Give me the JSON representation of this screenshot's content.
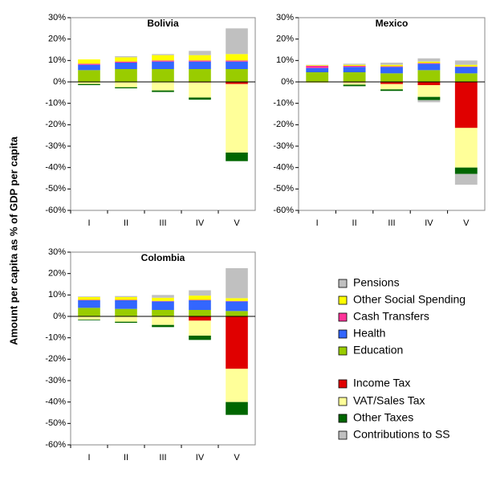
{
  "chart_data": [
    {
      "type": "bar",
      "title": "Bolivia",
      "ylabel": "Amount per capita as % of GDP per capita",
      "categories": [
        "I",
        "II",
        "III",
        "IV",
        "V"
      ],
      "ylim": [
        -60,
        30
      ],
      "yticks": [
        {
          "value": -60,
          "label": "-60%"
        },
        {
          "value": -50,
          "label": "-50%"
        },
        {
          "value": -40,
          "label": "-40%"
        },
        {
          "value": -30,
          "label": "-30%"
        },
        {
          "value": -20,
          "label": "-20%"
        },
        {
          "value": -10,
          "label": "-10%"
        },
        {
          "value": 0,
          "label": "0%"
        },
        {
          "value": 10,
          "label": "10%"
        },
        {
          "value": 20,
          "label": "20%"
        },
        {
          "value": 30,
          "label": "30%"
        }
      ],
      "series": [
        {
          "name": "Pensions",
          "color": "#c0c0c0",
          "values": [
            0,
            0.5,
            0.5,
            2,
            12
          ]
        },
        {
          "name": "Other Social Spending",
          "color": "#ffff00",
          "values": [
            2,
            2,
            2.5,
            2.5,
            3
          ]
        },
        {
          "name": "Cash Transfers",
          "color": "#ff3399",
          "values": [
            0.5,
            0.5,
            0.5,
            0.5,
            0.5
          ]
        },
        {
          "name": "Health",
          "color": "#3366ff",
          "values": [
            2.5,
            3,
            3.5,
            3.5,
            3.5
          ]
        },
        {
          "name": "Education",
          "color": "#99cc00",
          "values": [
            5.5,
            6,
            6,
            6,
            6
          ]
        },
        {
          "name": "Income Tax",
          "color": "#e00000",
          "values": [
            0,
            0,
            0,
            -0.3,
            -1
          ]
        },
        {
          "name": "VAT/Sales Tax",
          "color": "#ffff99",
          "values": [
            -1,
            -2.5,
            -4,
            -7,
            -32
          ]
        },
        {
          "name": "Other Taxes",
          "color": "#006600",
          "values": [
            -0.5,
            -0.5,
            -0.7,
            -1,
            -4
          ]
        },
        {
          "name": "Contributions to SS",
          "color": "#c0c0c0",
          "values": [
            0,
            0,
            0,
            0,
            0
          ]
        }
      ]
    },
    {
      "type": "bar",
      "title": "Mexico",
      "categories": [
        "I",
        "II",
        "III",
        "IV",
        "V"
      ],
      "ylim": [
        -60,
        30
      ],
      "yticks": [
        {
          "value": -60,
          "label": "-60%"
        },
        {
          "value": -50,
          "label": "-50%"
        },
        {
          "value": -40,
          "label": "-40%"
        },
        {
          "value": -30,
          "label": "-30%"
        },
        {
          "value": -20,
          "label": "-20%"
        },
        {
          "value": -10,
          "label": "-10%"
        },
        {
          "value": 0,
          "label": "0%"
        },
        {
          "value": 10,
          "label": "10%"
        },
        {
          "value": 20,
          "label": "20%"
        },
        {
          "value": 30,
          "label": "30%"
        }
      ],
      "series": [
        {
          "color": "#c0c0c0",
          "values": [
            0.2,
            0.5,
            1,
            1.5,
            2
          ]
        },
        {
          "color": "#ffff00",
          "values": [
            0.3,
            0.5,
            0.7,
            0.7,
            0.8
          ]
        },
        {
          "color": "#ff3399",
          "values": [
            1,
            0.5,
            0.3,
            0.3,
            0.2
          ]
        },
        {
          "color": "#3366ff",
          "values": [
            2,
            2.5,
            3,
            3,
            3
          ]
        },
        {
          "color": "#99cc00",
          "values": [
            4.5,
            4.5,
            4,
            5.5,
            4
          ]
        },
        {
          "color": "#e00000",
          "values": [
            0,
            -0.3,
            -1,
            -1.5,
            -21.5
          ]
        },
        {
          "color": "#ffff99",
          "values": [
            -0.5,
            -1,
            -2.5,
            -5.5,
            -18.5
          ]
        },
        {
          "color": "#006600",
          "values": [
            0,
            -0.7,
            -0.7,
            -1.5,
            -3
          ]
        },
        {
          "color": "#c0c0c0",
          "values": [
            0,
            0,
            0,
            -1,
            -5
          ]
        }
      ]
    },
    {
      "type": "bar",
      "title": "Colombia",
      "categories": [
        "I",
        "II",
        "III",
        "IV",
        "V"
      ],
      "ylim": [
        -60,
        30
      ],
      "yticks": [
        {
          "value": -60,
          "label": "-60%"
        },
        {
          "value": -50,
          "label": "-50%"
        },
        {
          "value": -40,
          "label": "-40%"
        },
        {
          "value": -30,
          "label": "-30%"
        },
        {
          "value": -20,
          "label": "-20%"
        },
        {
          "value": -10,
          "label": "-10%"
        },
        {
          "value": 0,
          "label": "0%"
        },
        {
          "value": 10,
          "label": "10%"
        },
        {
          "value": 20,
          "label": "20%"
        },
        {
          "value": 30,
          "label": "30%"
        }
      ],
      "series": [
        {
          "color": "#c0c0c0",
          "values": [
            0.3,
            0.5,
            1.3,
            2.5,
            14
          ]
        },
        {
          "color": "#ffff00",
          "values": [
            1.3,
            1.3,
            1.5,
            2,
            1.3
          ]
        },
        {
          "color": "#ff3399",
          "values": [
            0.2,
            0.2,
            0.2,
            0.2,
            0.2
          ]
        },
        {
          "color": "#3366ff",
          "values": [
            3.5,
            4,
            4,
            4.5,
            4.5
          ]
        },
        {
          "color": "#99cc00",
          "values": [
            4,
            3.5,
            3,
            3,
            2.5
          ]
        },
        {
          "color": "#e00000",
          "values": [
            0,
            0,
            0,
            -2,
            -24.5
          ]
        },
        {
          "color": "#ffff99",
          "values": [
            -1.5,
            -2.5,
            -4,
            -7,
            -15.5
          ]
        },
        {
          "color": "#006600",
          "values": [
            -0.3,
            -0.5,
            -1,
            -2,
            -6
          ]
        },
        {
          "color": "#c0c0c0",
          "values": [
            0,
            0,
            0,
            0,
            0
          ]
        }
      ]
    }
  ]
}
